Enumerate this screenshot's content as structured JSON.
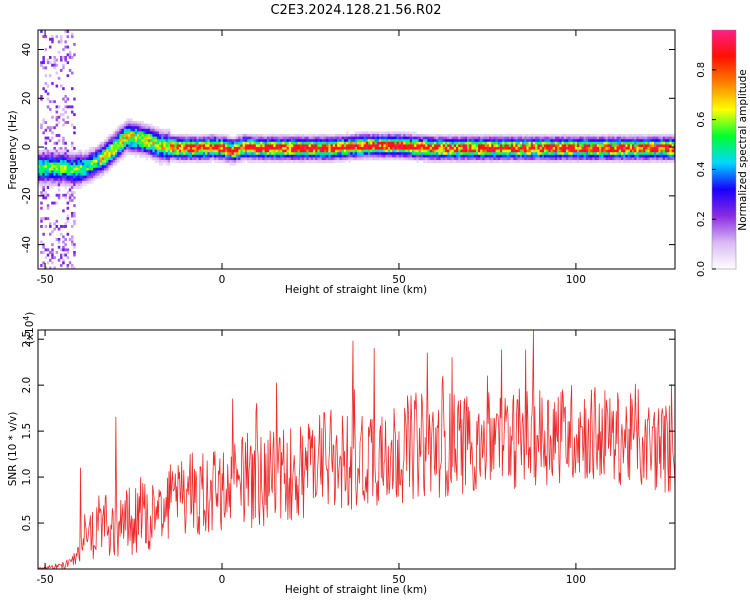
{
  "title": "C2E3.2024.128.21.56.R02",
  "chart_data": [
    {
      "type": "heatmap",
      "xlabel": "Height of straight line (km)",
      "ylabel": "Frequency (Hz)",
      "xlim": [
        -52,
        128
      ],
      "ylim": [
        -50,
        48
      ],
      "xticks": [
        -50,
        0,
        50,
        100
      ],
      "yticks": [
        -40,
        -20,
        0,
        20,
        40
      ],
      "ridge": {
        "x": [
          -48,
          -45,
          -42,
          -39,
          -36,
          -33,
          -30,
          -27,
          -24,
          -21,
          -18,
          -15,
          -12,
          -9,
          -6,
          -3,
          0,
          3,
          6,
          10,
          15,
          20,
          30,
          40,
          50,
          60,
          70,
          80,
          90,
          100,
          110,
          120,
          128
        ],
        "y": [
          -8,
          -8,
          -9,
          -8,
          -6,
          -3,
          1,
          5,
          4,
          3,
          1,
          0.5,
          0,
          0,
          0,
          0.5,
          0,
          -1,
          0.5,
          0,
          0,
          0,
          0,
          1,
          1,
          0,
          0,
          0,
          0,
          0,
          0,
          0,
          0
        ]
      },
      "colorbar": {
        "label": "Normalized spectral amplitude",
        "ticks": [
          0.0,
          0.2,
          0.4,
          0.6,
          0.8
        ],
        "range": [
          0.0,
          0.96
        ],
        "colors": [
          "#ffffff",
          "#d9b8f4",
          "#8a2be2",
          "#1800ff",
          "#00d8ff",
          "#00ff30",
          "#ffff00",
          "#ff8000",
          "#ff1000",
          "#ff1e8c"
        ]
      }
    },
    {
      "type": "line",
      "xlabel": "Height of straight line (km)",
      "ylabel": "SNR (10 * v/v)",
      "yscale_label": "(x10",
      "yscale_exp": "4",
      "yscale_close": ")",
      "xlim": [
        -52,
        128
      ],
      "ylim": [
        0,
        2.6
      ],
      "xticks": [
        -50,
        0,
        50,
        100
      ],
      "yticks": [
        0.5,
        1.0,
        1.5,
        2.0,
        2.5
      ],
      "line_color": "#ee2a2a",
      "trend": {
        "x": [
          -52,
          -45,
          -42,
          -40,
          -38,
          -35,
          -30,
          -25,
          -20,
          -15,
          -10,
          -5,
          0,
          10,
          20,
          30,
          40,
          50,
          60,
          70,
          80,
          90,
          100,
          110,
          120,
          128
        ],
        "y": [
          0.01,
          0.03,
          0.1,
          0.22,
          0.35,
          0.42,
          0.5,
          0.55,
          0.62,
          0.7,
          0.78,
          0.85,
          0.9,
          0.98,
          1.05,
          1.15,
          1.25,
          1.3,
          1.35,
          1.38,
          1.42,
          1.45,
          1.5,
          1.45,
          1.35,
          1.3
        ]
      },
      "noise": {
        "x": [
          -52,
          -42,
          -35,
          0,
          40,
          90,
          128
        ],
        "amplitude": [
          0.005,
          0.06,
          0.35,
          0.5,
          0.6,
          0.55,
          0.5
        ]
      },
      "peaks": [
        {
          "x": 88,
          "y": 2.6
        },
        {
          "x": 37,
          "y": 2.48
        },
        {
          "x": 43,
          "y": 2.4
        },
        {
          "x": 65,
          "y": 2.3
        },
        {
          "x": 58,
          "y": 2.35
        },
        {
          "x": -30,
          "y": 1.65
        },
        {
          "x": -40,
          "y": 1.1
        },
        {
          "x": 3,
          "y": 1.85
        },
        {
          "x": 75,
          "y": 2.1
        }
      ]
    }
  ]
}
